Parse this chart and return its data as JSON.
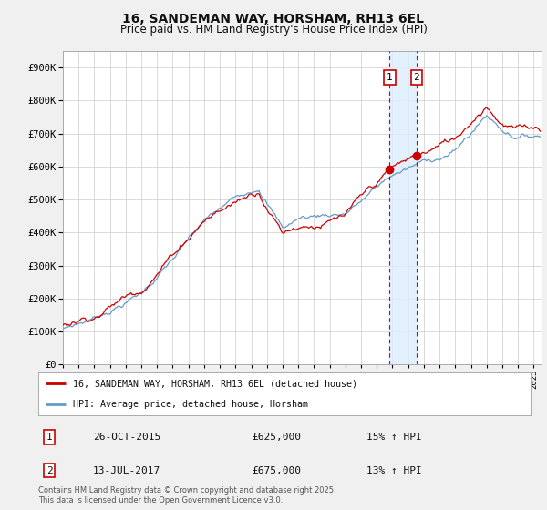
{
  "title": "16, SANDEMAN WAY, HORSHAM, RH13 6EL",
  "subtitle": "Price paid vs. HM Land Registry's House Price Index (HPI)",
  "ylim": [
    0,
    950000
  ],
  "yticks": [
    0,
    100000,
    200000,
    300000,
    400000,
    500000,
    600000,
    700000,
    800000,
    900000
  ],
  "ytick_labels": [
    "£0",
    "£100K",
    "£200K",
    "£300K",
    "£400K",
    "£500K",
    "£600K",
    "£700K",
    "£800K",
    "£900K"
  ],
  "background_color": "#f0f0f0",
  "plot_bg_color": "#ffffff",
  "grid_color": "#cccccc",
  "line1_color": "#cc0000",
  "line2_color": "#6699cc",
  "shade_color": "#ddeeff",
  "transaction1_x": 2015.82,
  "transaction1_price": 625000,
  "transaction2_x": 2017.53,
  "transaction2_price": 675000,
  "legend_line1": "16, SANDEMAN WAY, HORSHAM, RH13 6EL (detached house)",
  "legend_line2": "HPI: Average price, detached house, Horsham",
  "note1_label": "1",
  "note1_date": "26-OCT-2015",
  "note1_price": "£625,000",
  "note1_hpi": "15% ↑ HPI",
  "note2_label": "2",
  "note2_date": "13-JUL-2017",
  "note2_price": "£675,000",
  "note2_hpi": "13% ↑ HPI",
  "footer": "Contains HM Land Registry data © Crown copyright and database right 2025.\nThis data is licensed under the Open Government Licence v3.0.",
  "xmin": 1995,
  "xmax": 2025.5
}
